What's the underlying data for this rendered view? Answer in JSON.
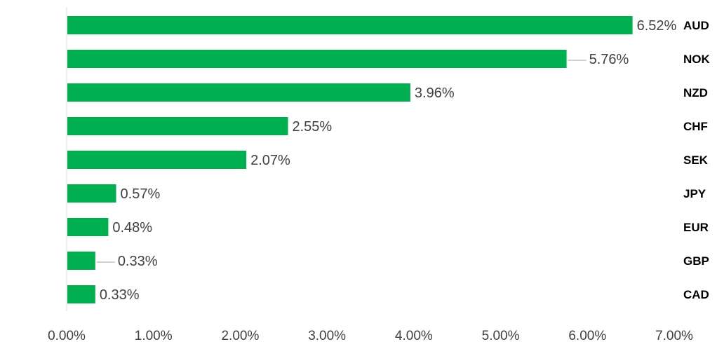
{
  "chart_data": {
    "type": "bar",
    "orientation": "horizontal",
    "categories": [
      "AUD",
      "NOK",
      "NZD",
      "CHF",
      "SEK",
      "JPY",
      "EUR",
      "GBP",
      "CAD"
    ],
    "values": [
      6.52,
      5.76,
      3.96,
      2.55,
      2.07,
      0.57,
      0.48,
      0.33,
      0.33
    ],
    "value_labels": [
      "6.52%",
      "5.76%",
      "3.96%",
      "2.55%",
      "2.07%",
      "0.57%",
      "0.48%",
      "0.33%",
      "0.33%"
    ],
    "title": "",
    "xlabel": "",
    "ylabel": "",
    "xlim": [
      0,
      7
    ],
    "x_ticks": [
      0,
      1,
      2,
      3,
      4,
      5,
      6,
      7
    ],
    "x_tick_labels": [
      "0.00%",
      "1.00%",
      "2.00%",
      "3.00%",
      "4.00%",
      "5.00%",
      "6.00%",
      "7.00%"
    ],
    "category_label_position": "right",
    "grid": false,
    "legend": "none",
    "bar_color": "#00b050",
    "axis_color": "#d9d9d9",
    "label_color": "#404040",
    "leader_line_color": "#a6a6a6"
  }
}
